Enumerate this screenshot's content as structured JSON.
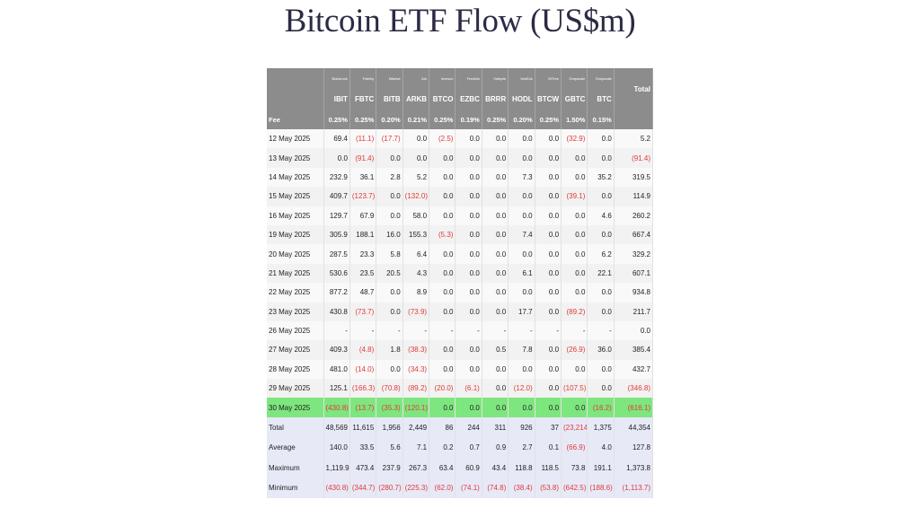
{
  "title": "Bitcoin ETF Flow (US$m)",
  "chart_data": {
    "type": "table",
    "sponsors": [
      "Blackrock",
      "Fidelity",
      "Bitwise",
      "Ark",
      "Invesco",
      "Franklin",
      "Valkyrie",
      "VanEck",
      "WTree",
      "Grayscale",
      "Grayscale"
    ],
    "tickers": [
      "IBIT",
      "FBTC",
      "BITB",
      "ARKB",
      "BTCO",
      "EZBC",
      "BRRR",
      "HODL",
      "BTCW",
      "GBTC",
      "BTC"
    ],
    "total_header": "Total",
    "fee_label": "Fee",
    "fees": [
      "0.25%",
      "0.25%",
      "0.20%",
      "0.21%",
      "0.25%",
      "0.19%",
      "0.25%",
      "0.20%",
      "0.25%",
      "1.50%",
      "0.15%"
    ],
    "rows": [
      {
        "date": "12 May 2025",
        "values": [
          "69.4",
          "(11.1)",
          "(17.7)",
          "0.0",
          "(2.5)",
          "0.0",
          "0.0",
          "0.0",
          "0.0",
          "(32.9)",
          "0.0"
        ],
        "total": "5.2"
      },
      {
        "date": "13 May 2025",
        "values": [
          "0.0",
          "(91.4)",
          "0.0",
          "0.0",
          "0.0",
          "0.0",
          "0.0",
          "0.0",
          "0.0",
          "0.0",
          "0.0"
        ],
        "total": "(91.4)"
      },
      {
        "date": "14 May 2025",
        "values": [
          "232.9",
          "36.1",
          "2.8",
          "5.2",
          "0.0",
          "0.0",
          "0.0",
          "7.3",
          "0.0",
          "0.0",
          "35.2"
        ],
        "total": "319.5"
      },
      {
        "date": "15 May 2025",
        "values": [
          "409.7",
          "(123.7)",
          "0.0",
          "(132.0)",
          "0.0",
          "0.0",
          "0.0",
          "0.0",
          "0.0",
          "(39.1)",
          "0.0"
        ],
        "total": "114.9"
      },
      {
        "date": "16 May 2025",
        "values": [
          "129.7",
          "67.9",
          "0.0",
          "58.0",
          "0.0",
          "0.0",
          "0.0",
          "0.0",
          "0.0",
          "0.0",
          "4.6"
        ],
        "total": "260.2"
      },
      {
        "date": "19 May 2025",
        "values": [
          "305.9",
          "188.1",
          "16.0",
          "155.3",
          "(5.3)",
          "0.0",
          "0.0",
          "7.4",
          "0.0",
          "0.0",
          "0.0"
        ],
        "total": "667.4"
      },
      {
        "date": "20 May 2025",
        "values": [
          "287.5",
          "23.3",
          "5.8",
          "6.4",
          "0.0",
          "0.0",
          "0.0",
          "0.0",
          "0.0",
          "0.0",
          "6.2"
        ],
        "total": "329.2"
      },
      {
        "date": "21 May 2025",
        "values": [
          "530.6",
          "23.5",
          "20.5",
          "4.3",
          "0.0",
          "0.0",
          "0.0",
          "6.1",
          "0.0",
          "0.0",
          "22.1"
        ],
        "total": "607.1"
      },
      {
        "date": "22 May 2025",
        "values": [
          "877.2",
          "48.7",
          "0.0",
          "8.9",
          "0.0",
          "0.0",
          "0.0",
          "0.0",
          "0.0",
          "0.0",
          "0.0"
        ],
        "total": "934.8"
      },
      {
        "date": "23 May 2025",
        "values": [
          "430.8",
          "(73.7)",
          "0.0",
          "(73.9)",
          "0.0",
          "0.0",
          "0.0",
          "17.7",
          "0.0",
          "(89.2)",
          "0.0"
        ],
        "total": "211.7"
      },
      {
        "date": "26 May 2025",
        "values": [
          "-",
          "-",
          "-",
          "-",
          "-",
          "-",
          "-",
          "-",
          "-",
          "-",
          "-"
        ],
        "total": "0.0"
      },
      {
        "date": "27 May 2025",
        "values": [
          "409.3",
          "(4.8)",
          "1.8",
          "(38.3)",
          "0.0",
          "0.0",
          "0.5",
          "7.8",
          "0.0",
          "(26.9)",
          "36.0"
        ],
        "total": "385.4"
      },
      {
        "date": "28 May 2025",
        "values": [
          "481.0",
          "(14.0)",
          "0.0",
          "(34.3)",
          "0.0",
          "0.0",
          "0.0",
          "0.0",
          "0.0",
          "0.0",
          "0.0"
        ],
        "total": "432.7"
      },
      {
        "date": "29 May 2025",
        "values": [
          "125.1",
          "(166.3)",
          "(70.8)",
          "(89.2)",
          "(20.0)",
          "(6.1)",
          "0.0",
          "(12.0)",
          "0.0",
          "(107.5)",
          "0.0"
        ],
        "total": "(346.8)"
      },
      {
        "date": "30 May 2025",
        "values": [
          "(430.8)",
          "(13.7)",
          "(35.3)",
          "(120.1)",
          "0.0",
          "0.0",
          "0.0",
          "0.0",
          "0.0",
          "0.0",
          "(16.2)"
        ],
        "total": "(616.1)",
        "highlight": true
      }
    ],
    "summary": [
      {
        "label": "Total",
        "values": [
          "48,569",
          "11,615",
          "1,956",
          "2,449",
          "86",
          "244",
          "311",
          "926",
          "37",
          "(23,214)",
          "1,375"
        ],
        "total": "44,354"
      },
      {
        "label": "Average",
        "values": [
          "140.0",
          "33.5",
          "5.6",
          "7.1",
          "0.2",
          "0.7",
          "0.9",
          "2.7",
          "0.1",
          "(66.9)",
          "4.0"
        ],
        "total": "127.8"
      },
      {
        "label": "Maximum",
        "values": [
          "1,119.9",
          "473.4",
          "237.9",
          "267.3",
          "63.4",
          "60.9",
          "43.4",
          "118.8",
          "118.5",
          "73.8",
          "191.1"
        ],
        "total": "1,373.8"
      },
      {
        "label": "Minimum",
        "values": [
          "(430.8)",
          "(344.7)",
          "(280.7)",
          "(225.3)",
          "(62.0)",
          "(74.1)",
          "(74.8)",
          "(38.4)",
          "(53.8)",
          "(642.5)",
          "(188.6)"
        ],
        "total": "(1,113.7)"
      }
    ],
    "colors": {
      "header_bg": "#8c8c8c",
      "highlight_row": "#7ee67e",
      "summary_bg": "#e7e9f7",
      "negative": "#e03a3a",
      "title": "#2b2b45"
    }
  }
}
